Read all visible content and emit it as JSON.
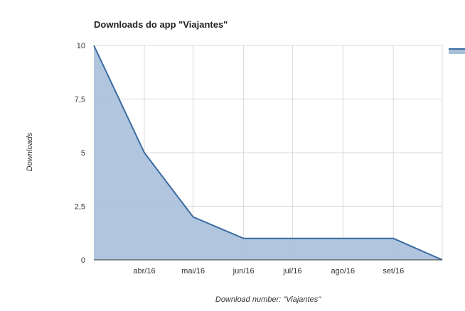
{
  "chart_data": {
    "type": "area",
    "title": "Downloads do app \"Viajantes\"",
    "xlabel": "Download number: \"Viajantes\"",
    "ylabel": "Downloads",
    "x_ticks": [
      "abr/16",
      "mai/16",
      "jun/16",
      "jul/16",
      "ago/16",
      "set/16"
    ],
    "y_ticks": [
      "0",
      "2,5",
      "5",
      "7,5",
      "10"
    ],
    "ylim": [
      0,
      10
    ],
    "x": [
      "2016-03-01",
      "2016-04-01",
      "2016-05-01",
      "2016-06-01",
      "2016-07-01",
      "2016-08-01",
      "2016-09-01",
      "2016-10-01"
    ],
    "series": [
      {
        "values": [
          10,
          5,
          2,
          1,
          1,
          1,
          1,
          0
        ]
      }
    ],
    "grid": true,
    "colors": {
      "line": "#3b6aa0",
      "fill": "#a9c0da",
      "grid": "#d9d9d9",
      "axis": "#333333"
    }
  }
}
